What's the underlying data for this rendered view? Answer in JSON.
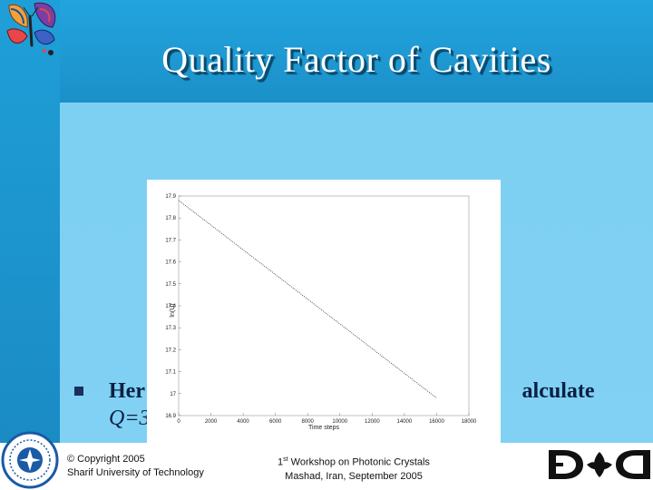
{
  "slide": {
    "title": "Quality Factor of Cavities",
    "bullet_line1": "Her",
    "bullet_line1_end": "alculate",
    "bullet_line2": "Q=3"
  },
  "footer": {
    "copyright": "© Copyright 2005",
    "institution": "Sharif University of Technology",
    "workshop_ordinal": "1",
    "workshop_sup": "st",
    "workshop_rest": " Workshop on Photonic Crystals",
    "location": "Mashad, Iran, September 2005"
  },
  "icons": {
    "butterfly": "butterfly-logo-icon",
    "seal": "sharif-seal-icon",
    "dept_logo": "department-logo-icon"
  },
  "colors": {
    "background": "#1c93c9",
    "content": "#7fd0f3",
    "title_text": "#ffffff",
    "bullet_text": "#0c1f44"
  },
  "chart_data": {
    "type": "line",
    "xlabel": "Time steps",
    "ylabel": "ln(U)",
    "xlim": [
      0,
      18000
    ],
    "ylim": [
      16.9,
      17.9
    ],
    "xticks": [
      0,
      2000,
      4000,
      6000,
      8000,
      10000,
      12000,
      14000,
      16000,
      18000
    ],
    "yticks": [
      16.9,
      17,
      17.1,
      17.2,
      17.3,
      17.4,
      17.5,
      17.6,
      17.7,
      17.8,
      17.9
    ],
    "ytick_labels": [
      "16.9",
      "17",
      "17.1",
      "17.2",
      "17.3",
      "17.4",
      "17.5",
      "17.6",
      "17.7",
      "17.8",
      "17.9"
    ],
    "xtick_labels": [
      "0",
      "2000",
      "4000",
      "6000",
      "8000",
      "10000",
      "12000",
      "14000",
      "16000",
      "18000"
    ],
    "series": [
      {
        "x": [
          0,
          16000
        ],
        "y": [
          17.88,
          16.98
        ]
      }
    ],
    "line_style": "dotted",
    "grid": false
  }
}
